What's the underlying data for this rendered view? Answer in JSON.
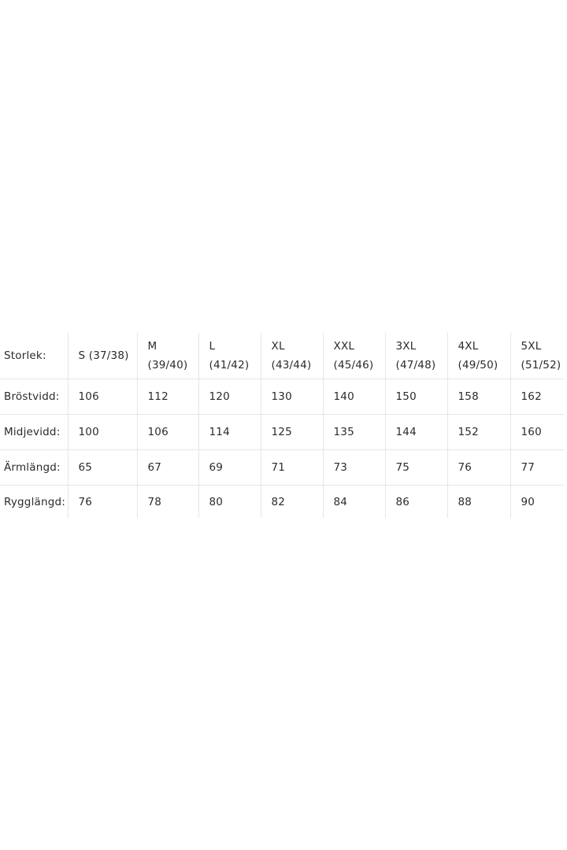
{
  "table": {
    "row_header": "Storlek:",
    "sizes": [
      {
        "name": "S (37/38)",
        "eu": ""
      },
      {
        "name": "M",
        "eu": "(39/40)"
      },
      {
        "name": "L",
        "eu": "(41/42)"
      },
      {
        "name": "XL",
        "eu": "(43/44)"
      },
      {
        "name": "XXL",
        "eu": "(45/46)"
      },
      {
        "name": "3XL",
        "eu": "(47/48)"
      },
      {
        "name": "4XL",
        "eu": "(49/50)"
      },
      {
        "name": "5XL",
        "eu": "(51/52)"
      }
    ],
    "rows": [
      {
        "label": "Bröstvidd:",
        "values": [
          "106",
          "112",
          "120",
          "130",
          "140",
          "150",
          "158",
          "162"
        ]
      },
      {
        "label": "Midjevidd:",
        "values": [
          "100",
          "106",
          "114",
          "125",
          "135",
          "144",
          "152",
          "160"
        ]
      },
      {
        "label": "Ärmlängd:",
        "values": [
          "65",
          "67",
          "69",
          "71",
          "73",
          "75",
          "76",
          "77"
        ]
      },
      {
        "label": "Rygglängd:",
        "values": [
          "76",
          "78",
          "80",
          "82",
          "84",
          "86",
          "88",
          "90"
        ]
      }
    ]
  }
}
